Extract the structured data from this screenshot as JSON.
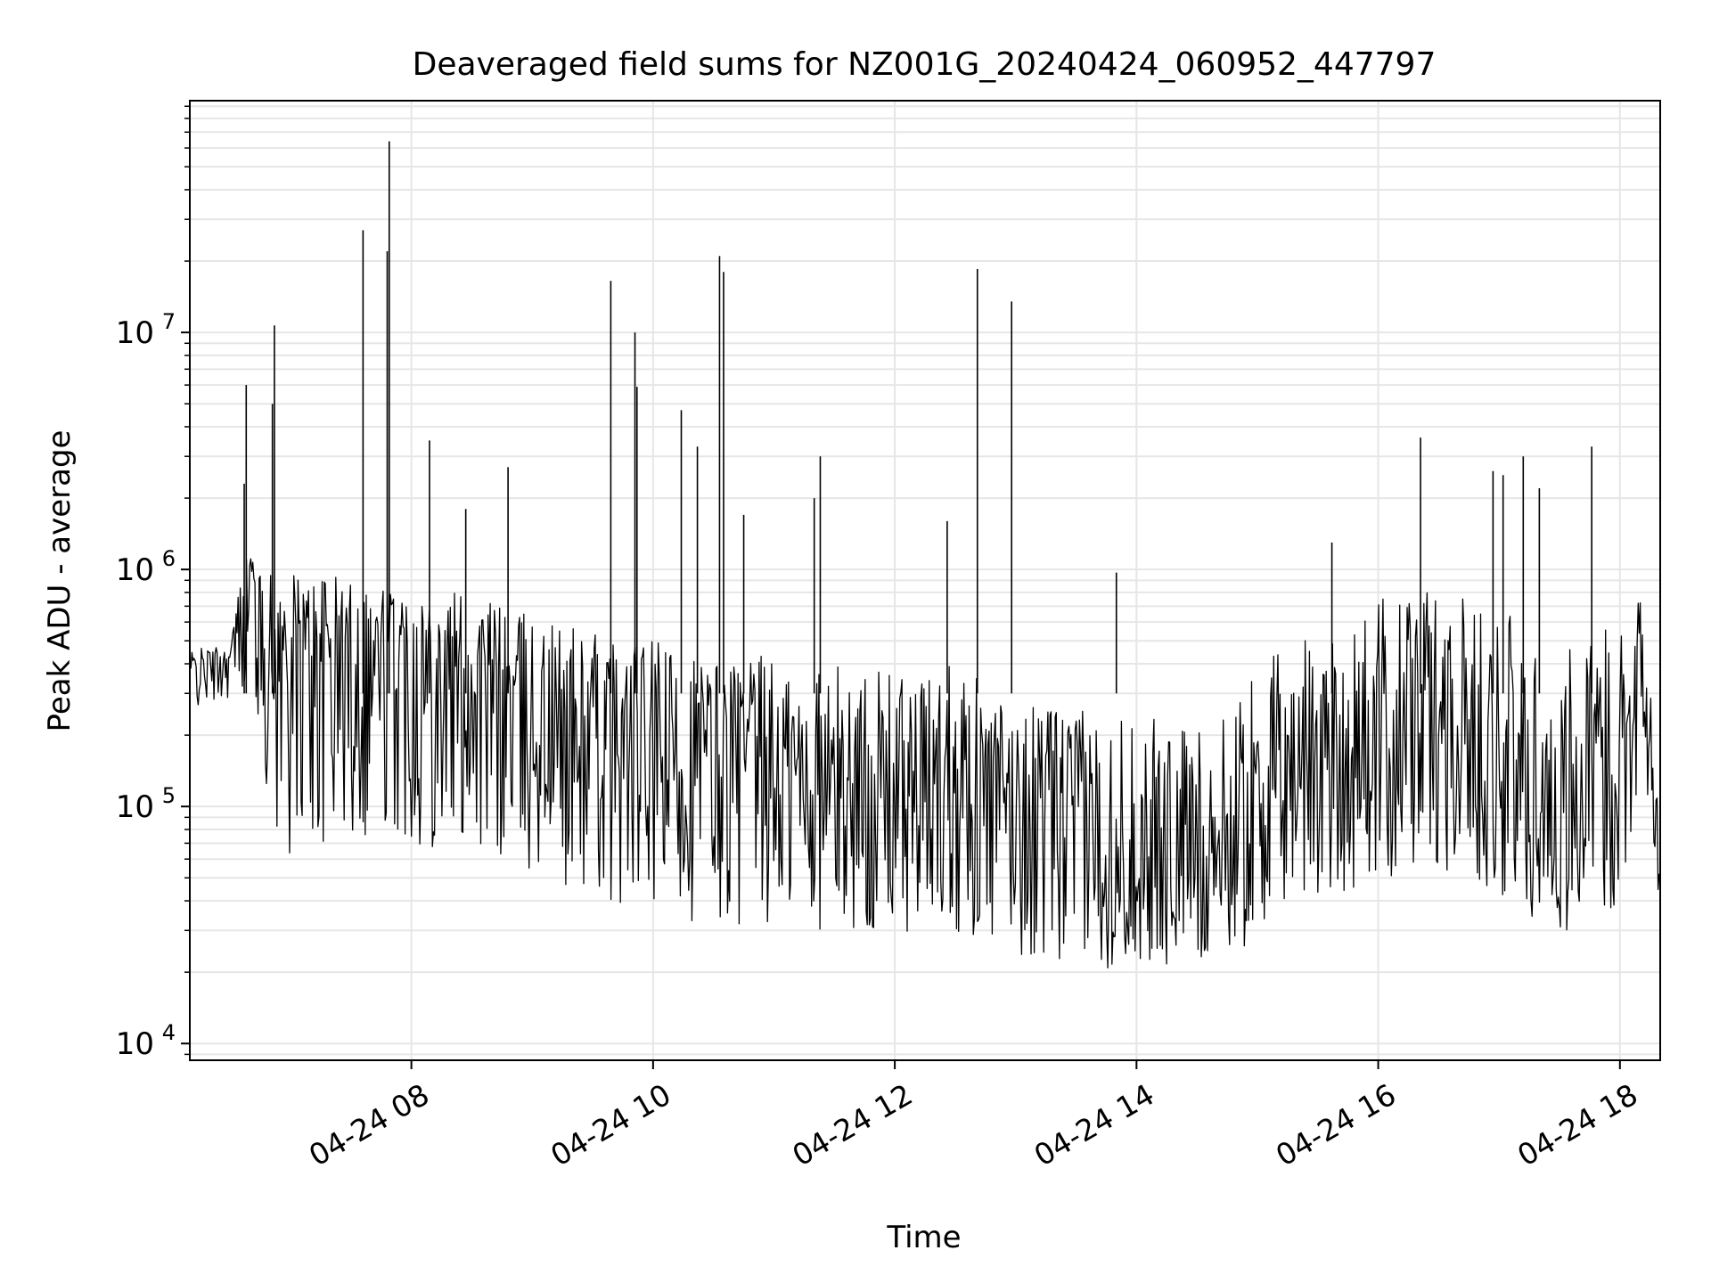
{
  "chart_data": {
    "type": "line",
    "title": "Deaveraged field sums for NZ001G_20240424_060952_447797",
    "xlabel": "Time",
    "ylabel": "Peak ADU - average",
    "yscale": "log",
    "grid": true,
    "line_color": "#000000",
    "xlim": [
      "2024-04-24 06:10",
      "2024-04-24 18:20"
    ],
    "ylim": [
      8500,
      95000000
    ],
    "x_ticks": [
      {
        "value": "2024-04-24 08:00",
        "label": "04-24 08"
      },
      {
        "value": "2024-04-24 10:00",
        "label": "04-24 10"
      },
      {
        "value": "2024-04-24 12:00",
        "label": "04-24 12"
      },
      {
        "value": "2024-04-24 14:00",
        "label": "04-24 14"
      },
      {
        "value": "2024-04-24 16:00",
        "label": "04-24 16"
      },
      {
        "value": "2024-04-24 18:00",
        "label": "04-24 18"
      }
    ],
    "y_ticks": [
      {
        "value": 10000,
        "base": "10",
        "exp": "4"
      },
      {
        "value": 100000,
        "base": "10",
        "exp": "5"
      },
      {
        "value": 1000000,
        "base": "10",
        "exp": "6"
      },
      {
        "value": 10000000,
        "base": "10",
        "exp": "7"
      }
    ],
    "series": [
      {
        "x": [
          "2024-04-24 06:10",
          "2024-04-24 06:20",
          "2024-04-24 06:30",
          "2024-04-24 06:35",
          "2024-04-24 06:40",
          "2024-04-24 06:45",
          "2024-04-24 06:50",
          "2024-04-24 06:55",
          "2024-04-24 07:00",
          "2024-04-24 07:05",
          "2024-04-24 07:10",
          "2024-04-24 07:20",
          "2024-04-24 07:30",
          "2024-04-24 07:40",
          "2024-04-24 07:50",
          "2024-04-24 08:00",
          "2024-04-24 08:15",
          "2024-04-24 08:30",
          "2024-04-24 08:45",
          "2024-04-24 09:00",
          "2024-04-24 09:15",
          "2024-04-24 09:30",
          "2024-04-24 09:45",
          "2024-04-24 10:00",
          "2024-04-24 10:15",
          "2024-04-24 10:30",
          "2024-04-24 10:45",
          "2024-04-24 11:00",
          "2024-04-24 11:15",
          "2024-04-24 11:30",
          "2024-04-24 11:45",
          "2024-04-24 12:00",
          "2024-04-24 12:15",
          "2024-04-24 12:30",
          "2024-04-24 12:45",
          "2024-04-24 13:00",
          "2024-04-24 13:15",
          "2024-04-24 13:30",
          "2024-04-24 13:45",
          "2024-04-24 14:00",
          "2024-04-24 14:15",
          "2024-04-24 14:30",
          "2024-04-24 14:45",
          "2024-04-24 15:00",
          "2024-04-24 15:15",
          "2024-04-24 15:30",
          "2024-04-24 15:45",
          "2024-04-24 16:00",
          "2024-04-24 16:15",
          "2024-04-24 16:30",
          "2024-04-24 16:45",
          "2024-04-24 17:00",
          "2024-04-24 17:15",
          "2024-04-24 17:30",
          "2024-04-24 17:45",
          "2024-04-24 18:00",
          "2024-04-24 18:10",
          "2024-04-24 18:20"
        ],
        "y": [
          380000,
          400000,
          420000,
          700000,
          1000000,
          650000,
          500000,
          420000,
          480000,
          550000,
          520000,
          500000,
          480000,
          470000,
          460000,
          450000,
          400000,
          350000,
          300000,
          250000,
          220000,
          200000,
          180000,
          160000,
          160000,
          150000,
          150000,
          140000,
          130000,
          120000,
          120000,
          120000,
          110000,
          180000,
          110000,
          100000,
          95000,
          90000,
          85000,
          80000,
          75000,
          70000,
          75000,
          110000,
          140000,
          160000,
          150000,
          180000,
          230000,
          260000,
          200000,
          160000,
          120000,
          100000,
          110000,
          150000,
          550000,
          40000
        ],
        "y_low": [
          250000,
          270000,
          290000,
          300000,
          360000,
          170000,
          90000,
          70000,
          60000,
          60000,
          60000,
          65000,
          70000,
          75000,
          70000,
          70000,
          65000,
          60000,
          55000,
          50000,
          45000,
          40000,
          38000,
          35000,
          33000,
          32000,
          31000,
          30000,
          30000,
          30000,
          29000,
          28000,
          27000,
          30000,
          25000,
          23000,
          22000,
          21000,
          20000,
          20000,
          20000,
          21000,
          23000,
          28000,
          34000,
          40000,
          42000,
          45000,
          50000,
          55000,
          50000,
          42000,
          30000,
          26000,
          30000,
          40000,
          120000,
          32000
        ],
        "y_high": [
          460000,
          470000,
          480000,
          900000,
          1300000,
          950000,
          950000,
          960000,
          960000,
          950000,
          950000,
          940000,
          930000,
          920000,
          900000,
          880000,
          850000,
          800000,
          720000,
          650000,
          600000,
          560000,
          520000,
          500000,
          480000,
          460000,
          450000,
          430000,
          420000,
          400000,
          380000,
          370000,
          350000,
          500000,
          300000,
          280000,
          270000,
          260000,
          250000,
          240000,
          230000,
          220000,
          240000,
          380000,
          500000,
          650000,
          700000,
          750000,
          800000,
          850000,
          800000,
          700000,
          550000,
          500000,
          520000,
          650000,
          850000,
          130000
        ]
      }
    ],
    "spikes": [
      {
        "x": "2024-04-24 06:37",
        "y": 2300000
      },
      {
        "x": "2024-04-24 06:38",
        "y": 6000000
      },
      {
        "x": "2024-04-24 06:51",
        "y": 5000000
      },
      {
        "x": "2024-04-24 06:52",
        "y": 10700000
      },
      {
        "x": "2024-04-24 07:36",
        "y": 27000000
      },
      {
        "x": "2024-04-24 07:48",
        "y": 22000000
      },
      {
        "x": "2024-04-24 07:49",
        "y": 64000000
      },
      {
        "x": "2024-04-24 08:09",
        "y": 3500000
      },
      {
        "x": "2024-04-24 08:27",
        "y": 1800000
      },
      {
        "x": "2024-04-24 08:48",
        "y": 2700000
      },
      {
        "x": "2024-04-24 09:39",
        "y": 16500000
      },
      {
        "x": "2024-04-24 09:51",
        "y": 10000000
      },
      {
        "x": "2024-04-24 09:52",
        "y": 5900000
      },
      {
        "x": "2024-04-24 10:14",
        "y": 4700000
      },
      {
        "x": "2024-04-24 10:22",
        "y": 3300000
      },
      {
        "x": "2024-04-24 10:33",
        "y": 21000000
      },
      {
        "x": "2024-04-24 10:35",
        "y": 18000000
      },
      {
        "x": "2024-04-24 10:45",
        "y": 1700000
      },
      {
        "x": "2024-04-24 11:20",
        "y": 2000000
      },
      {
        "x": "2024-04-24 11:23",
        "y": 3000000
      },
      {
        "x": "2024-04-24 12:26",
        "y": 1600000
      },
      {
        "x": "2024-04-24 12:41",
        "y": 18500000
      },
      {
        "x": "2024-04-24 12:58",
        "y": 13500000
      },
      {
        "x": "2024-04-24 13:50",
        "y": 970000
      },
      {
        "x": "2024-04-24 15:37",
        "y": 1300000
      },
      {
        "x": "2024-04-24 16:21",
        "y": 3600000
      },
      {
        "x": "2024-04-24 16:57",
        "y": 2600000
      },
      {
        "x": "2024-04-24 17:02",
        "y": 2500000
      },
      {
        "x": "2024-04-24 17:12",
        "y": 3000000
      },
      {
        "x": "2024-04-24 17:20",
        "y": 2200000
      },
      {
        "x": "2024-04-24 17:46",
        "y": 3300000
      }
    ]
  }
}
